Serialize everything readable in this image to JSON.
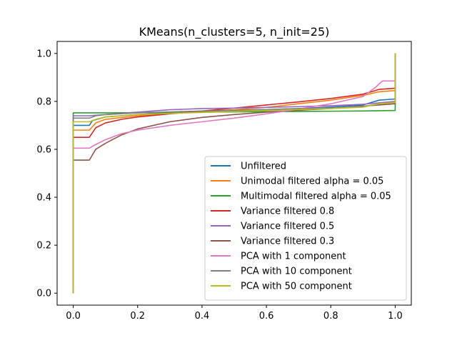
{
  "chart_data": {
    "type": "line",
    "title": "KMeans(n_clusters=5, n_init=25)",
    "xlabel": "",
    "ylabel": "",
    "xlim": [
      -0.05,
      1.05
    ],
    "ylim": [
      -0.05,
      1.05
    ],
    "xticks": [
      0.0,
      0.2,
      0.4,
      0.6,
      0.8,
      1.0
    ],
    "xtick_labels": [
      "0.0",
      "0.2",
      "0.4",
      "0.6",
      "0.8",
      "1.0"
    ],
    "yticks": [
      0.0,
      0.2,
      0.4,
      0.6,
      0.8,
      1.0
    ],
    "ytick_labels": [
      "0.0",
      "0.2",
      "0.4",
      "0.6",
      "0.8",
      "1.0"
    ],
    "grid": false,
    "legend_position": "lower-right",
    "series": [
      {
        "name": "Unfiltered",
        "color": "#1f77b4",
        "x": [
          0.0,
          0.0,
          0.05,
          0.06,
          0.1,
          0.2,
          0.3,
          0.4,
          0.5,
          0.6,
          0.7,
          0.8,
          0.9,
          0.95,
          1.0,
          1.0
        ],
        "y": [
          0.0,
          0.7,
          0.7,
          0.72,
          0.735,
          0.745,
          0.753,
          0.758,
          0.762,
          0.766,
          0.77,
          0.776,
          0.785,
          0.805,
          0.81,
          1.0
        ]
      },
      {
        "name": "Unimodal filtered alpha = 0.05",
        "color": "#ff7f0e",
        "x": [
          0.0,
          0.0,
          0.05,
          0.07,
          0.1,
          0.2,
          0.3,
          0.4,
          0.5,
          0.6,
          0.7,
          0.8,
          0.9,
          0.95,
          1.0,
          1.0
        ],
        "y": [
          0.0,
          0.68,
          0.68,
          0.71,
          0.725,
          0.74,
          0.75,
          0.757,
          0.765,
          0.775,
          0.79,
          0.805,
          0.825,
          0.84,
          0.845,
          1.0
        ]
      },
      {
        "name": "Multimodal filtered alpha = 0.05",
        "color": "#2ca02c",
        "x": [
          0.0,
          0.0,
          0.1,
          0.2,
          0.3,
          0.4,
          0.5,
          0.6,
          0.7,
          0.8,
          0.9,
          1.0,
          1.0
        ],
        "y": [
          0.0,
          0.752,
          0.752,
          0.753,
          0.754,
          0.755,
          0.756,
          0.757,
          0.758,
          0.759,
          0.76,
          0.762,
          1.0
        ]
      },
      {
        "name": "Variance filtered 0.8",
        "color": "#d62728",
        "x": [
          0.0,
          0.0,
          0.05,
          0.07,
          0.1,
          0.15,
          0.2,
          0.3,
          0.4,
          0.5,
          0.6,
          0.7,
          0.8,
          0.9,
          0.95,
          1.0,
          1.0
        ],
        "y": [
          0.0,
          0.65,
          0.65,
          0.69,
          0.71,
          0.725,
          0.735,
          0.748,
          0.76,
          0.772,
          0.785,
          0.798,
          0.812,
          0.83,
          0.85,
          0.855,
          1.0
        ]
      },
      {
        "name": "Variance filtered 0.5",
        "color": "#9467bd",
        "x": [
          0.0,
          0.0,
          0.05,
          0.1,
          0.2,
          0.3,
          0.4,
          0.5,
          0.6,
          0.7,
          0.8,
          0.9,
          1.0,
          1.0
        ],
        "y": [
          0.0,
          0.74,
          0.74,
          0.745,
          0.755,
          0.765,
          0.77,
          0.772,
          0.775,
          0.778,
          0.782,
          0.788,
          0.8,
          1.0
        ]
      },
      {
        "name": "Variance filtered 0.3",
        "color": "#8c564b",
        "x": [
          0.0,
          0.0,
          0.05,
          0.07,
          0.1,
          0.15,
          0.2,
          0.3,
          0.4,
          0.5,
          0.6,
          0.7,
          0.8,
          0.9,
          1.0,
          1.0
        ],
        "y": [
          0.0,
          0.555,
          0.555,
          0.6,
          0.625,
          0.66,
          0.685,
          0.715,
          0.733,
          0.745,
          0.755,
          0.763,
          0.77,
          0.78,
          0.79,
          1.0
        ]
      },
      {
        "name": "PCA with 1 component",
        "color": "#e377c2",
        "x": [
          0.0,
          0.0,
          0.05,
          0.07,
          0.1,
          0.15,
          0.2,
          0.3,
          0.4,
          0.5,
          0.6,
          0.7,
          0.8,
          0.9,
          0.94,
          0.96,
          1.0,
          1.0
        ],
        "y": [
          0.0,
          0.605,
          0.605,
          0.62,
          0.64,
          0.665,
          0.68,
          0.7,
          0.715,
          0.73,
          0.748,
          0.768,
          0.79,
          0.82,
          0.86,
          0.885,
          0.885,
          1.0
        ]
      },
      {
        "name": "PCA with 10 component",
        "color": "#7f7f7f",
        "x": [
          0.0,
          0.0,
          0.05,
          0.07,
          0.1,
          0.2,
          0.3,
          0.4,
          0.5,
          0.6,
          0.7,
          0.8,
          0.9,
          0.95,
          1.0,
          1.0
        ],
        "y": [
          0.0,
          0.73,
          0.73,
          0.74,
          0.745,
          0.752,
          0.756,
          0.76,
          0.763,
          0.766,
          0.769,
          0.772,
          0.778,
          0.79,
          0.795,
          1.0
        ]
      },
      {
        "name": "PCA with 50 component",
        "color": "#bcbd22",
        "x": [
          0.0,
          0.0,
          0.05,
          0.07,
          0.1,
          0.2,
          0.3,
          0.4,
          0.5,
          0.6,
          0.7,
          0.8,
          0.9,
          0.95,
          1.0,
          1.0
        ],
        "y": [
          0.0,
          0.715,
          0.715,
          0.725,
          0.735,
          0.745,
          0.75,
          0.754,
          0.758,
          0.762,
          0.766,
          0.77,
          0.776,
          0.79,
          0.795,
          1.0
        ]
      }
    ]
  }
}
